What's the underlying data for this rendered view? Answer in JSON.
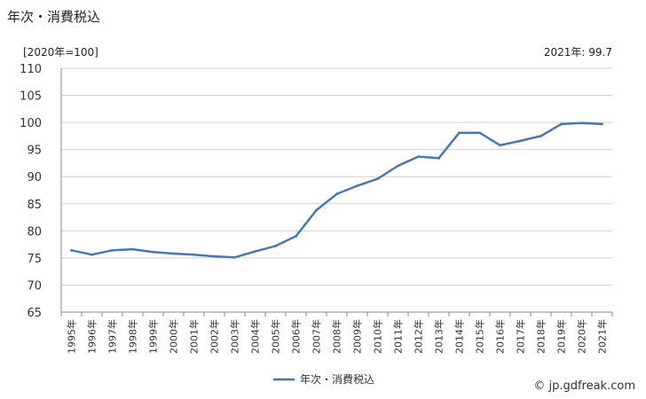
{
  "title": "年次・消費税込",
  "unit_label": "[2020年=100]",
  "note": "2021年: 99.7",
  "credit": "© jp.gdfreak.com",
  "chart_data": {
    "type": "line",
    "title": "年次・消費税込",
    "xlabel": "",
    "ylabel": "[2020年=100]",
    "ylim": [
      65,
      110
    ],
    "yticks": [
      65,
      70,
      75,
      80,
      85,
      90,
      95,
      100,
      105,
      110
    ],
    "grid": true,
    "legend_position": "bottom",
    "categories": [
      "1995年",
      "1996年",
      "1997年",
      "1998年",
      "1999年",
      "2000年",
      "2001年",
      "2002年",
      "2003年",
      "2004年",
      "2005年",
      "2006年",
      "2007年",
      "2008年",
      "2009年",
      "2010年",
      "2011年",
      "2012年",
      "2013年",
      "2014年",
      "2015年",
      "2016年",
      "2017年",
      "2018年",
      "2019年",
      "2020年",
      "2021年"
    ],
    "series": [
      {
        "name": "年次・消費税込",
        "color": "#4a78b0",
        "values": [
          76.4,
          75.6,
          76.4,
          76.6,
          76.1,
          75.8,
          75.6,
          75.3,
          75.1,
          76.2,
          77.2,
          79.0,
          83.8,
          86.8,
          88.3,
          89.6,
          92.0,
          93.7,
          93.4,
          98.1,
          98.1,
          95.8,
          96.6,
          97.5,
          99.7,
          99.9,
          99.7
        ]
      }
    ]
  }
}
